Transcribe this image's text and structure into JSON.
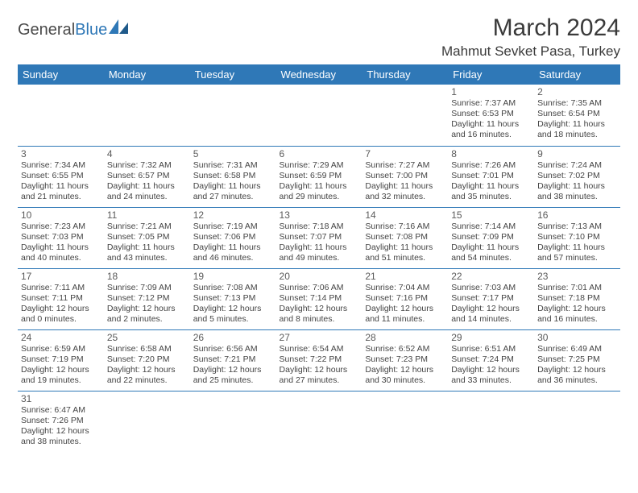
{
  "logo": {
    "part1": "General",
    "part2": "Blue"
  },
  "title": "March 2024",
  "location": "Mahmut Sevket Pasa, Turkey",
  "colors": {
    "header_bg": "#2f78b7",
    "header_text": "#ffffff",
    "border": "#2f78b7",
    "daynum": "#5a5a5a",
    "body_text": "#444444",
    "title_text": "#3a3a3a"
  },
  "typography": {
    "title_fontsize": 30,
    "location_fontsize": 17,
    "header_fontsize": 13,
    "daynum_fontsize": 12,
    "body_fontsize": 10.5
  },
  "weekdays": [
    "Sunday",
    "Monday",
    "Tuesday",
    "Wednesday",
    "Thursday",
    "Friday",
    "Saturday"
  ],
  "weeks": [
    [
      null,
      null,
      null,
      null,
      null,
      {
        "n": "1",
        "sr": "7:37 AM",
        "ss": "6:53 PM",
        "dl": "11 hours and 16 minutes."
      },
      {
        "n": "2",
        "sr": "7:35 AM",
        "ss": "6:54 PM",
        "dl": "11 hours and 18 minutes."
      }
    ],
    [
      {
        "n": "3",
        "sr": "7:34 AM",
        "ss": "6:55 PM",
        "dl": "11 hours and 21 minutes."
      },
      {
        "n": "4",
        "sr": "7:32 AM",
        "ss": "6:57 PM",
        "dl": "11 hours and 24 minutes."
      },
      {
        "n": "5",
        "sr": "7:31 AM",
        "ss": "6:58 PM",
        "dl": "11 hours and 27 minutes."
      },
      {
        "n": "6",
        "sr": "7:29 AM",
        "ss": "6:59 PM",
        "dl": "11 hours and 29 minutes."
      },
      {
        "n": "7",
        "sr": "7:27 AM",
        "ss": "7:00 PM",
        "dl": "11 hours and 32 minutes."
      },
      {
        "n": "8",
        "sr": "7:26 AM",
        "ss": "7:01 PM",
        "dl": "11 hours and 35 minutes."
      },
      {
        "n": "9",
        "sr": "7:24 AM",
        "ss": "7:02 PM",
        "dl": "11 hours and 38 minutes."
      }
    ],
    [
      {
        "n": "10",
        "sr": "7:23 AM",
        "ss": "7:03 PM",
        "dl": "11 hours and 40 minutes."
      },
      {
        "n": "11",
        "sr": "7:21 AM",
        "ss": "7:05 PM",
        "dl": "11 hours and 43 minutes."
      },
      {
        "n": "12",
        "sr": "7:19 AM",
        "ss": "7:06 PM",
        "dl": "11 hours and 46 minutes."
      },
      {
        "n": "13",
        "sr": "7:18 AM",
        "ss": "7:07 PM",
        "dl": "11 hours and 49 minutes."
      },
      {
        "n": "14",
        "sr": "7:16 AM",
        "ss": "7:08 PM",
        "dl": "11 hours and 51 minutes."
      },
      {
        "n": "15",
        "sr": "7:14 AM",
        "ss": "7:09 PM",
        "dl": "11 hours and 54 minutes."
      },
      {
        "n": "16",
        "sr": "7:13 AM",
        "ss": "7:10 PM",
        "dl": "11 hours and 57 minutes."
      }
    ],
    [
      {
        "n": "17",
        "sr": "7:11 AM",
        "ss": "7:11 PM",
        "dl": "12 hours and 0 minutes."
      },
      {
        "n": "18",
        "sr": "7:09 AM",
        "ss": "7:12 PM",
        "dl": "12 hours and 2 minutes."
      },
      {
        "n": "19",
        "sr": "7:08 AM",
        "ss": "7:13 PM",
        "dl": "12 hours and 5 minutes."
      },
      {
        "n": "20",
        "sr": "7:06 AM",
        "ss": "7:14 PM",
        "dl": "12 hours and 8 minutes."
      },
      {
        "n": "21",
        "sr": "7:04 AM",
        "ss": "7:16 PM",
        "dl": "12 hours and 11 minutes."
      },
      {
        "n": "22",
        "sr": "7:03 AM",
        "ss": "7:17 PM",
        "dl": "12 hours and 14 minutes."
      },
      {
        "n": "23",
        "sr": "7:01 AM",
        "ss": "7:18 PM",
        "dl": "12 hours and 16 minutes."
      }
    ],
    [
      {
        "n": "24",
        "sr": "6:59 AM",
        "ss": "7:19 PM",
        "dl": "12 hours and 19 minutes."
      },
      {
        "n": "25",
        "sr": "6:58 AM",
        "ss": "7:20 PM",
        "dl": "12 hours and 22 minutes."
      },
      {
        "n": "26",
        "sr": "6:56 AM",
        "ss": "7:21 PM",
        "dl": "12 hours and 25 minutes."
      },
      {
        "n": "27",
        "sr": "6:54 AM",
        "ss": "7:22 PM",
        "dl": "12 hours and 27 minutes."
      },
      {
        "n": "28",
        "sr": "6:52 AM",
        "ss": "7:23 PM",
        "dl": "12 hours and 30 minutes."
      },
      {
        "n": "29",
        "sr": "6:51 AM",
        "ss": "7:24 PM",
        "dl": "12 hours and 33 minutes."
      },
      {
        "n": "30",
        "sr": "6:49 AM",
        "ss": "7:25 PM",
        "dl": "12 hours and 36 minutes."
      }
    ],
    [
      {
        "n": "31",
        "sr": "6:47 AM",
        "ss": "7:26 PM",
        "dl": "12 hours and 38 minutes."
      },
      null,
      null,
      null,
      null,
      null,
      null
    ]
  ]
}
